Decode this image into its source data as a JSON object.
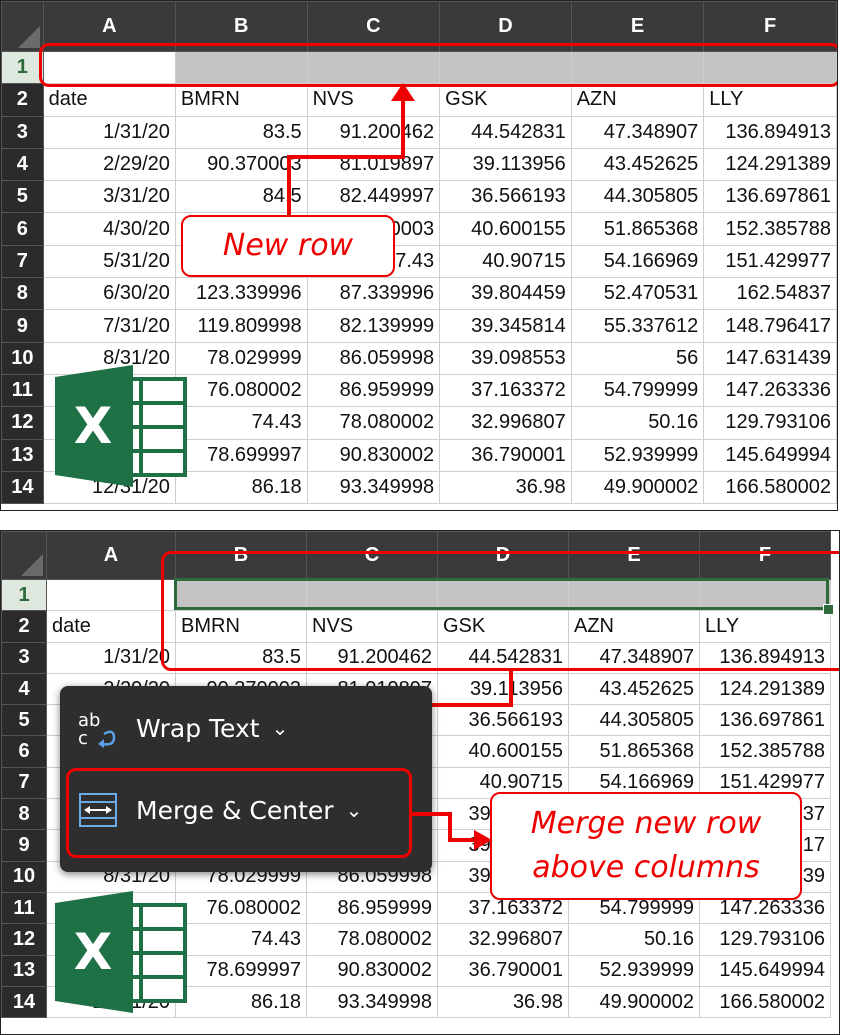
{
  "columns": [
    "A",
    "B",
    "C",
    "D",
    "E",
    "F"
  ],
  "header_row": [
    "date",
    "BMRN",
    "NVS",
    "GSK",
    "AZN",
    "LLY"
  ],
  "rows": [
    [
      "1/31/20",
      "83.5",
      "91.200462",
      "44.542831",
      "47.348907",
      "136.894913"
    ],
    [
      "2/29/20",
      "90.370003",
      "81.019897",
      "39.113956",
      "43.452625",
      "124.291389"
    ],
    [
      "3/31/20",
      "84.5",
      "82.449997",
      "36.566193",
      "44.305805",
      "136.697861"
    ],
    [
      "4/30/20",
      "",
      "84.800003",
      "40.600155",
      "51.865368",
      "152.385788"
    ],
    [
      "5/31/20",
      "",
      "87.43",
      "40.90715",
      "54.166969",
      "151.429977"
    ],
    [
      "6/30/20",
      "123.339996",
      "87.339996",
      "39.804459",
      "52.470531",
      "162.54837"
    ],
    [
      "7/31/20",
      "119.809998",
      "82.139999",
      "39.345814",
      "55.337612",
      "148.796417"
    ],
    [
      "8/31/20",
      "78.029999",
      "86.059998",
      "39.098553",
      "56",
      "147.631439"
    ],
    [
      "",
      "76.080002",
      "86.959999",
      "37.163372",
      "54.799999",
      "147.263336"
    ],
    [
      "",
      "74.43",
      "78.080002",
      "32.996807",
      "50.16",
      "129.793106"
    ],
    [
      "",
      "78.699997",
      "90.830002",
      "36.790001",
      "52.939999",
      "145.649994"
    ],
    [
      "12/31/20",
      "86.18",
      "93.349998",
      "36.98",
      "49.900002",
      "166.580002"
    ]
  ],
  "row_numbers": [
    "1",
    "2",
    "3",
    "4",
    "5",
    "6",
    "7",
    "8",
    "9",
    "10",
    "11",
    "12",
    "13",
    "14"
  ],
  "callout_new_row": "New row",
  "callout_merge_line1": "Merge new row",
  "callout_merge_line2": "above columns",
  "menu": {
    "wrap_text": "Wrap Text",
    "merge_center": "Merge & Center"
  },
  "excel_logo_letter": "X",
  "colors": {
    "accent_red": "#e00000",
    "excel_green": "#1e7145",
    "selection_green": "#2f6b3a"
  }
}
